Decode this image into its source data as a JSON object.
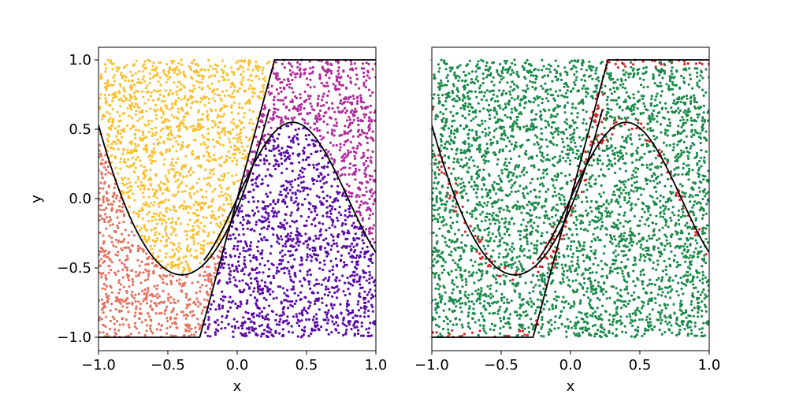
{
  "chart_data": [
    {
      "type": "scatter",
      "panel": "left",
      "title": "",
      "xlabel": "x",
      "ylabel": "y",
      "xlim": [
        -1.0,
        1.0
      ],
      "ylim": [
        -1.0,
        1.0
      ],
      "grid": false,
      "xticks": [
        -1.0,
        -0.5,
        0.0,
        0.5,
        1.0
      ],
      "yticks": [
        -1.0,
        -0.5,
        0.0,
        0.5,
        1.0
      ],
      "xtick_labels": [
        "−1.0",
        "−0.5",
        "0.0",
        "0.5",
        "1.0"
      ],
      "ytick_labels": [
        "−1.0",
        "−0.5",
        "0.0",
        "0.5",
        "1.0"
      ],
      "point_count": 4000,
      "region_colors": {
        "between_parabola_and_ramp_upper": "#fbc02d",
        "below_parabola_left": "#e57360",
        "above_sine_right": "#b02a9c",
        "below_sine_inside_ramp": "#5a0aa6"
      },
      "boundaries": [
        {
          "name": "parabola",
          "formula": "y = 3*(x+0.4)^2 - 0.55",
          "x_range": [
            -1.0,
            0.24
          ],
          "color": "#000000"
        },
        {
          "name": "sine",
          "formula": "y = 0.55*sin(pi*x*1.25) ",
          "x_range": [
            -0.24,
            1.0
          ],
          "color": "#000000"
        },
        {
          "name": "ramp",
          "points": [
            [
              -1.0,
              -1.0
            ],
            [
              -0.27,
              -1.0
            ],
            [
              0.27,
              1.0
            ],
            [
              1.0,
              1.0
            ]
          ],
          "color": "#000000"
        }
      ]
    },
    {
      "type": "scatter",
      "panel": "right",
      "title": "",
      "xlabel": "x",
      "ylabel": "",
      "xlim": [
        -1.0,
        1.0
      ],
      "ylim": [
        -1.0,
        1.0
      ],
      "grid": false,
      "xticks": [
        -1.0,
        -0.5,
        0.0,
        0.5,
        1.0
      ],
      "xtick_labels": [
        "−1.0",
        "−0.5",
        "0.0",
        "0.5",
        "1.0"
      ],
      "point_count": 4000,
      "colors": {
        "correct": "#1a8a4a",
        "misclassified": "#d62728"
      },
      "misclassified_band": 0.035,
      "boundaries": [
        {
          "name": "parabola",
          "color": "#000000"
        },
        {
          "name": "sine",
          "color": "#000000"
        },
        {
          "name": "ramp",
          "color": "#000000"
        }
      ]
    }
  ]
}
